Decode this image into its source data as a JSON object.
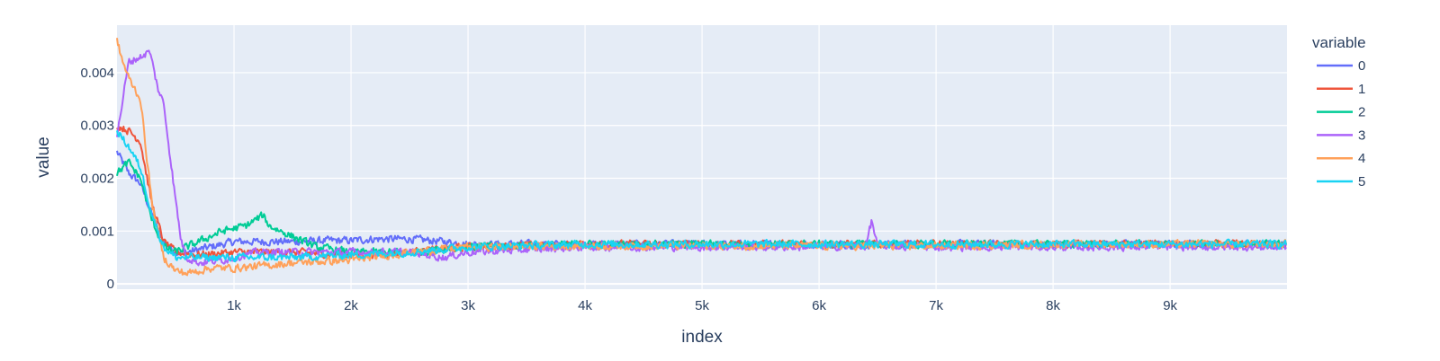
{
  "chart_data": {
    "type": "line",
    "xlabel": "index",
    "ylabel": "value",
    "legend_title": "variable",
    "legend_position": "right",
    "grid": true,
    "colors": {
      "plot_bg": "#E5ECF6",
      "grid": "#ffffff",
      "text": "#2a3f5f"
    },
    "xlim": [
      0,
      9999
    ],
    "ylim": [
      -0.0001,
      0.0049
    ],
    "x_ticks": [
      {
        "value": 1000,
        "label": "1k"
      },
      {
        "value": 2000,
        "label": "2k"
      },
      {
        "value": 3000,
        "label": "3k"
      },
      {
        "value": 4000,
        "label": "4k"
      },
      {
        "value": 5000,
        "label": "5k"
      },
      {
        "value": 6000,
        "label": "6k"
      },
      {
        "value": 7000,
        "label": "7k"
      },
      {
        "value": 8000,
        "label": "8k"
      },
      {
        "value": 9000,
        "label": "9k"
      }
    ],
    "y_ticks": [
      {
        "value": 0,
        "label": "0"
      },
      {
        "value": 0.001,
        "label": "0.001"
      },
      {
        "value": 0.002,
        "label": "0.002"
      },
      {
        "value": 0.003,
        "label": "0.003"
      },
      {
        "value": 0.004,
        "label": "0.004"
      }
    ],
    "series": [
      {
        "name": "0",
        "color": "#636EFA",
        "noise": 0.0001,
        "points": [
          [
            0,
            0.0025
          ],
          [
            100,
            0.0021
          ],
          [
            200,
            0.0019
          ],
          [
            300,
            0.0013
          ],
          [
            400,
            0.0008
          ],
          [
            500,
            0.0006
          ],
          [
            600,
            0.0006
          ],
          [
            800,
            0.0007
          ],
          [
            1000,
            0.0008
          ],
          [
            1200,
            0.0008
          ],
          [
            1500,
            0.0008
          ],
          [
            1800,
            0.00082
          ],
          [
            2000,
            0.00082
          ],
          [
            2200,
            0.00085
          ],
          [
            2500,
            0.00085
          ],
          [
            2800,
            0.0008
          ],
          [
            3000,
            0.00075
          ],
          [
            4000,
            0.00075
          ],
          [
            5000,
            0.00075
          ],
          [
            6000,
            0.00075
          ],
          [
            7000,
            0.00075
          ],
          [
            8000,
            0.00075
          ],
          [
            9000,
            0.00075
          ],
          [
            9999,
            0.00075
          ]
        ]
      },
      {
        "name": "1",
        "color": "#EF553B",
        "noise": 0.0001,
        "points": [
          [
            0,
            0.003
          ],
          [
            100,
            0.0029
          ],
          [
            200,
            0.0027
          ],
          [
            300,
            0.0015
          ],
          [
            400,
            0.0008
          ],
          [
            500,
            0.0006
          ],
          [
            700,
            0.00055
          ],
          [
            1000,
            0.0006
          ],
          [
            1500,
            0.0006
          ],
          [
            2000,
            0.00055
          ],
          [
            2500,
            0.0006
          ],
          [
            3000,
            0.0007
          ],
          [
            4000,
            0.00075
          ],
          [
            5000,
            0.00075
          ],
          [
            6000,
            0.00075
          ],
          [
            7000,
            0.00075
          ],
          [
            8000,
            0.00075
          ],
          [
            9000,
            0.00075
          ],
          [
            9999,
            0.00075
          ]
        ]
      },
      {
        "name": "2",
        "color": "#00CC96",
        "noise": 0.0001,
        "points": [
          [
            0,
            0.0021
          ],
          [
            100,
            0.0023
          ],
          [
            200,
            0.002
          ],
          [
            300,
            0.0012
          ],
          [
            400,
            0.0007
          ],
          [
            500,
            0.0006
          ],
          [
            700,
            0.0008
          ],
          [
            900,
            0.001
          ],
          [
            1100,
            0.0011
          ],
          [
            1250,
            0.0013
          ],
          [
            1300,
            0.0011
          ],
          [
            1500,
            0.0009
          ],
          [
            1700,
            0.0007
          ],
          [
            2000,
            0.0006
          ],
          [
            2500,
            0.0006
          ],
          [
            3000,
            0.0007
          ],
          [
            4000,
            0.00075
          ],
          [
            5000,
            0.00075
          ],
          [
            6000,
            0.00075
          ],
          [
            7000,
            0.00075
          ],
          [
            8000,
            0.00075
          ],
          [
            9000,
            0.00075
          ],
          [
            9999,
            0.00075
          ]
        ]
      },
      {
        "name": "3",
        "color": "#AB63FA",
        "noise": 0.0001,
        "points": [
          [
            0,
            0.0028
          ],
          [
            50,
            0.0035
          ],
          [
            100,
            0.0042
          ],
          [
            200,
            0.0043
          ],
          [
            280,
            0.0044
          ],
          [
            350,
            0.0037
          ],
          [
            400,
            0.0034
          ],
          [
            450,
            0.0025
          ],
          [
            500,
            0.0016
          ],
          [
            550,
            0.0008
          ],
          [
            600,
            0.0005
          ],
          [
            700,
            0.0004
          ],
          [
            900,
            0.00045
          ],
          [
            1200,
            0.0006
          ],
          [
            1500,
            0.0006
          ],
          [
            2000,
            0.0006
          ],
          [
            2500,
            0.0006
          ],
          [
            2800,
            0.0005
          ],
          [
            3000,
            0.0006
          ],
          [
            4000,
            0.0007
          ],
          [
            5000,
            0.0007
          ],
          [
            6000,
            0.0007
          ],
          [
            6400,
            0.00072
          ],
          [
            6450,
            0.0012
          ],
          [
            6500,
            0.00072
          ],
          [
            7000,
            0.0007
          ],
          [
            8000,
            0.0007
          ],
          [
            9000,
            0.0007
          ],
          [
            9999,
            0.0007
          ]
        ]
      },
      {
        "name": "4",
        "color": "#FFA15A",
        "noise": 0.0001,
        "points": [
          [
            0,
            0.0046
          ],
          [
            50,
            0.0042
          ],
          [
            100,
            0.0039
          ],
          [
            200,
            0.0035
          ],
          [
            300,
            0.0015
          ],
          [
            400,
            0.0005
          ],
          [
            500,
            0.00025
          ],
          [
            600,
            0.0002
          ],
          [
            800,
            0.0003
          ],
          [
            1000,
            0.0003
          ],
          [
            1300,
            0.00035
          ],
          [
            1500,
            0.0004
          ],
          [
            2000,
            0.00045
          ],
          [
            2500,
            0.0006
          ],
          [
            3000,
            0.0007
          ],
          [
            4000,
            0.00072
          ],
          [
            5000,
            0.00072
          ],
          [
            6000,
            0.00072
          ],
          [
            7000,
            0.00072
          ],
          [
            8000,
            0.00075
          ],
          [
            9000,
            0.00075
          ],
          [
            9999,
            0.00075
          ]
        ]
      },
      {
        "name": "5",
        "color": "#19D3F3",
        "noise": 0.0001,
        "points": [
          [
            0,
            0.0029
          ],
          [
            100,
            0.0026
          ],
          [
            200,
            0.0022
          ],
          [
            300,
            0.0013
          ],
          [
            400,
            0.0007
          ],
          [
            500,
            0.0005
          ],
          [
            700,
            0.0005
          ],
          [
            1000,
            0.0005
          ],
          [
            1500,
            0.0005
          ],
          [
            2000,
            0.00055
          ],
          [
            2500,
            0.0006
          ],
          [
            3000,
            0.0007
          ],
          [
            4000,
            0.00075
          ],
          [
            5000,
            0.00075
          ],
          [
            6000,
            0.00075
          ],
          [
            7000,
            0.00075
          ],
          [
            8000,
            0.00075
          ],
          [
            9000,
            0.00075
          ],
          [
            9999,
            0.00075
          ]
        ]
      }
    ]
  }
}
